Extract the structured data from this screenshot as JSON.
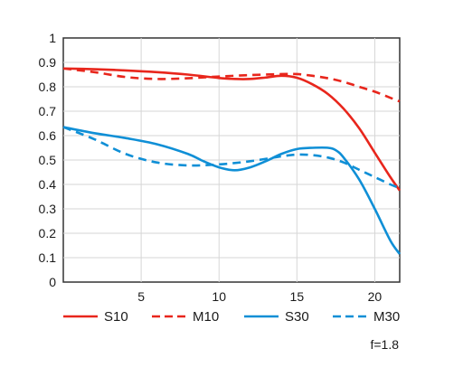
{
  "chart_data": {
    "type": "line",
    "xlim": [
      0,
      21.6
    ],
    "ylim": [
      0,
      1
    ],
    "x_ticks": [
      5,
      10,
      15,
      20
    ],
    "y_ticks": [
      0,
      0.1,
      0.2,
      0.3,
      0.4,
      0.5,
      0.6,
      0.7,
      0.8,
      0.9,
      1
    ],
    "x_tick_labels": [
      "5",
      "10",
      "15",
      "20"
    ],
    "y_tick_labels": [
      "0",
      "0.1",
      "0.2",
      "0.3",
      "0.4",
      "0.5",
      "0.6",
      "0.7",
      "0.8",
      "0.9",
      "1"
    ],
    "grid": true,
    "legend_position": "bottom",
    "note": "f=1.8",
    "series": [
      {
        "name": "S10",
        "color": "#e8261c",
        "dash": "solid",
        "x": [
          0,
          2,
          4,
          6,
          8,
          10,
          11,
          12,
          13,
          14,
          15,
          16,
          17,
          18,
          19,
          20,
          21,
          21.6
        ],
        "y": [
          0.875,
          0.872,
          0.867,
          0.86,
          0.85,
          0.836,
          0.832,
          0.832,
          0.838,
          0.845,
          0.837,
          0.81,
          0.77,
          0.71,
          0.63,
          0.53,
          0.43,
          0.375
        ]
      },
      {
        "name": "M10",
        "color": "#e8261c",
        "dash": "dashed",
        "x": [
          0,
          2,
          4,
          6,
          8,
          10,
          12,
          14,
          15,
          16,
          17,
          18,
          19,
          20,
          21,
          21.6
        ],
        "y": [
          0.875,
          0.86,
          0.84,
          0.832,
          0.835,
          0.842,
          0.848,
          0.852,
          0.852,
          0.845,
          0.835,
          0.82,
          0.8,
          0.78,
          0.755,
          0.74
        ]
      },
      {
        "name": "S30",
        "color": "#0f8fd6",
        "dash": "solid",
        "x": [
          0,
          2,
          4,
          6,
          8,
          9,
          10,
          11,
          12,
          13,
          14,
          15,
          16,
          17,
          17.5,
          18,
          19,
          20,
          21,
          21.6
        ],
        "y": [
          0.635,
          0.61,
          0.59,
          0.565,
          0.525,
          0.495,
          0.47,
          0.458,
          0.47,
          0.495,
          0.525,
          0.545,
          0.55,
          0.55,
          0.54,
          0.51,
          0.42,
          0.3,
          0.17,
          0.115
        ]
      },
      {
        "name": "M30",
        "color": "#0f8fd6",
        "dash": "dashed",
        "x": [
          0,
          2,
          4,
          6,
          8,
          10,
          12,
          14,
          15,
          16,
          17,
          18,
          19,
          20,
          21,
          21.6
        ],
        "y": [
          0.635,
          0.585,
          0.525,
          0.49,
          0.478,
          0.482,
          0.495,
          0.515,
          0.522,
          0.52,
          0.51,
          0.49,
          0.46,
          0.43,
          0.4,
          0.385
        ]
      }
    ]
  }
}
